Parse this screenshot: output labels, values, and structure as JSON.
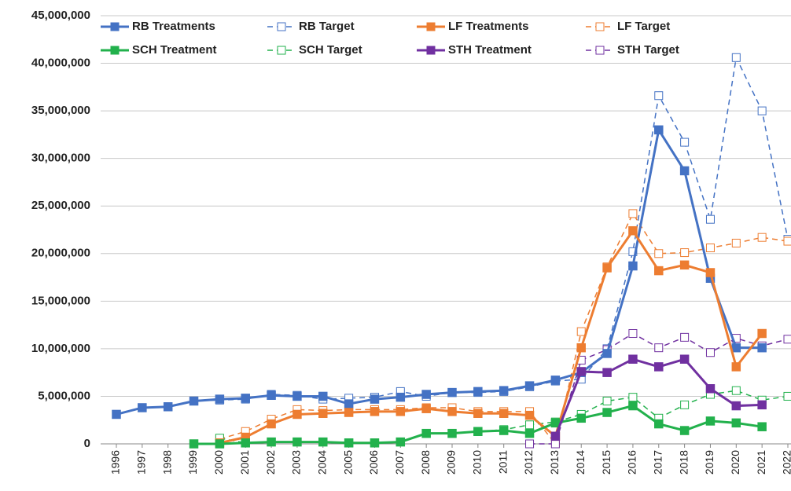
{
  "chart_data": {
    "type": "line",
    "categories": [
      "1996",
      "1997",
      "1998",
      "1999",
      "2000",
      "2001",
      "2002",
      "2003",
      "2004",
      "2005",
      "2006",
      "2007",
      "2008",
      "2009",
      "2010",
      "2011",
      "2012",
      "2013",
      "2014",
      "2015",
      "2016",
      "2017",
      "2018",
      "2019",
      "2020",
      "2021",
      "2022"
    ],
    "ylim": [
      0,
      45000000
    ],
    "yticks": [
      0,
      {
        "value": 5000000,
        "label": "5,000,000"
      },
      {
        "value": 10000000,
        "label": "10,000,000"
      },
      {
        "value": 15000000,
        "label": "15,000,000"
      },
      {
        "value": 20000000,
        "label": "20,000,000"
      },
      {
        "value": 25000000,
        "label": "25,000,000"
      },
      {
        "value": 30000000,
        "label": "30,000,000"
      },
      {
        "value": 35000000,
        "label": "35,000,000"
      },
      {
        "value": 40000000,
        "label": "40,000,000"
      },
      {
        "value": 45000000,
        "label": "45,000,000"
      }
    ],
    "grid": true,
    "legend": "top",
    "series": [
      {
        "name": "RB Treatments",
        "color": "#4472c4",
        "line_style": "solid",
        "values": [
          3100000,
          3800000,
          3900000,
          4500000,
          4700000,
          4800000,
          5100000,
          5000000,
          5000000,
          4200000,
          4700000,
          4900000,
          5200000,
          5400000,
          5500000,
          5600000,
          6100000,
          6700000,
          7500000,
          9500000,
          18700000,
          33000000,
          28700000,
          17400000,
          10100000,
          10100000,
          null
        ]
      },
      {
        "name": "RB Target",
        "color": "#4472c4",
        "line_style": "dashed",
        "values": [
          3100000,
          3800000,
          3900000,
          4500000,
          4600000,
          4700000,
          5200000,
          5100000,
          4700000,
          4800000,
          4900000,
          5500000,
          5000000,
          5400000,
          5400000,
          5500000,
          6000000,
          6600000,
          6800000,
          10000000,
          20200000,
          36600000,
          31700000,
          23600000,
          40600000,
          35000000,
          21500000
        ]
      },
      {
        "name": "LF Treatments",
        "color": "#ed7d31",
        "line_style": "solid",
        "values": [
          null,
          null,
          null,
          null,
          100000,
          700000,
          2100000,
          3100000,
          3200000,
          3300000,
          3400000,
          3400000,
          3700000,
          3400000,
          3200000,
          3200000,
          3000000,
          800000,
          10100000,
          18500000,
          22400000,
          18200000,
          18800000,
          18000000,
          8100000,
          11600000,
          null
        ]
      },
      {
        "name": "LF Target",
        "color": "#ed7d31",
        "line_style": "dashed",
        "values": [
          null,
          null,
          null,
          null,
          500000,
          1300000,
          2600000,
          3600000,
          3500000,
          3600000,
          3600000,
          3600000,
          3800000,
          3800000,
          3400000,
          3400000,
          3400000,
          0,
          11800000,
          18600000,
          24200000,
          20000000,
          20100000,
          20600000,
          21100000,
          21700000,
          21300000
        ]
      },
      {
        "name": "SCH Treatment",
        "color": "#22b14c",
        "line_style": "solid",
        "values": [
          null,
          null,
          null,
          0,
          0,
          100000,
          200000,
          200000,
          200000,
          100000,
          100000,
          200000,
          1100000,
          1100000,
          1300000,
          1400000,
          1100000,
          2200000,
          2700000,
          3300000,
          4000000,
          2100000,
          1400000,
          2400000,
          2200000,
          1800000,
          null
        ]
      },
      {
        "name": "SCH Target",
        "color": "#22b14c",
        "line_style": "dashed",
        "values": [
          null,
          null,
          null,
          null,
          600000,
          100000,
          200000,
          200000,
          200000,
          100000,
          100000,
          200000,
          1100000,
          1100000,
          1300000,
          1500000,
          2000000,
          2300000,
          3100000,
          4500000,
          4900000,
          2700000,
          4100000,
          5200000,
          5600000,
          4600000,
          5000000
        ]
      },
      {
        "name": "STH Treatment",
        "color": "#7030a0",
        "line_style": "solid",
        "values": [
          null,
          null,
          null,
          null,
          null,
          null,
          null,
          null,
          null,
          null,
          null,
          null,
          null,
          null,
          null,
          null,
          null,
          800000,
          7600000,
          7500000,
          8900000,
          8100000,
          8900000,
          5800000,
          4000000,
          4100000,
          null
        ]
      },
      {
        "name": "STH Target",
        "color": "#7030a0",
        "line_style": "dashed",
        "values": [
          null,
          null,
          null,
          null,
          null,
          null,
          null,
          null,
          null,
          null,
          null,
          null,
          null,
          null,
          null,
          null,
          0,
          0,
          8800000,
          9900000,
          11600000,
          10100000,
          11200000,
          9600000,
          11100000,
          10300000,
          11000000
        ]
      }
    ]
  }
}
